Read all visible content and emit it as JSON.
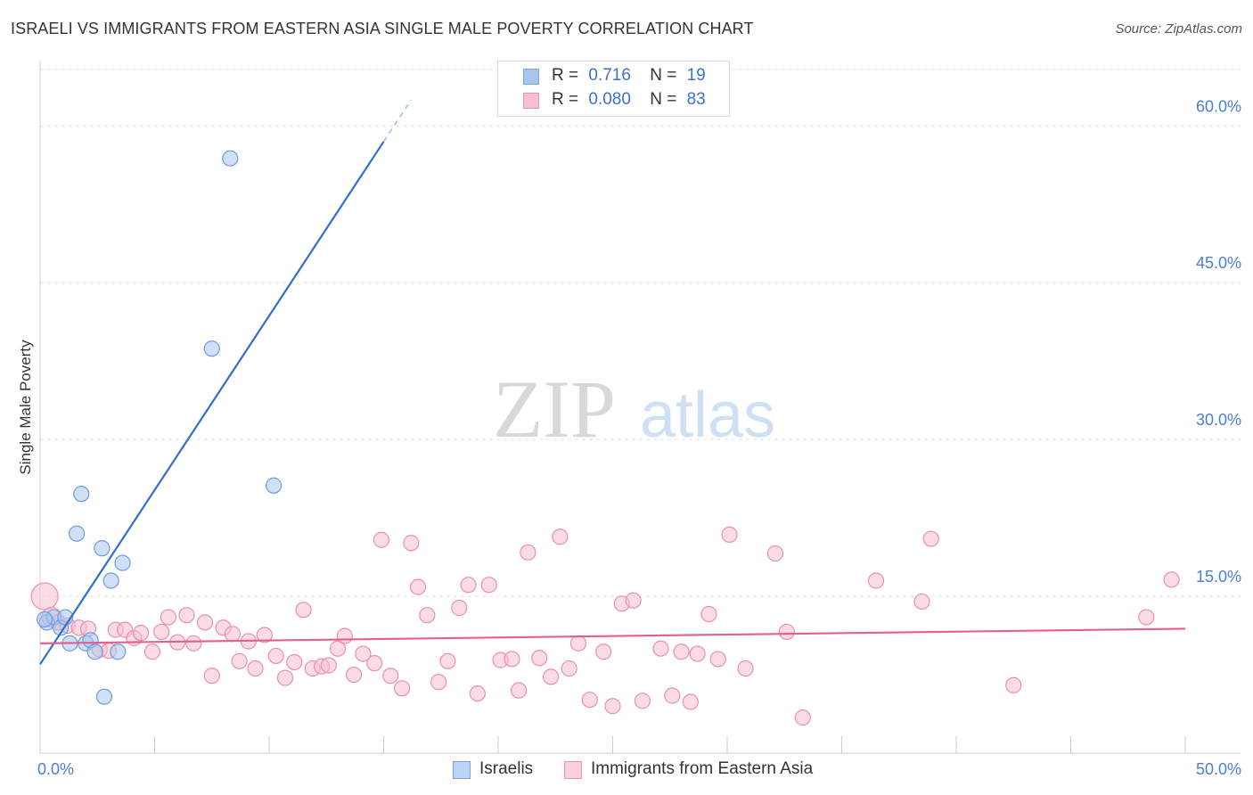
{
  "title": "ISRAELI VS IMMIGRANTS FROM EASTERN ASIA SINGLE MALE POVERTY CORRELATION CHART",
  "source": "Source: ZipAtlas.com",
  "watermark": {
    "zip": "ZIP",
    "atlas": "atlas"
  },
  "legend": {
    "rows": [
      {
        "r_label": "R =",
        "r_value": "0.716",
        "n_label": "N =",
        "n_value": "19",
        "color": "#a9c6ef",
        "border": "#7aa3de"
      },
      {
        "r_label": "R =",
        "r_value": "0.080",
        "n_label": "N =",
        "n_value": "83",
        "color": "#f8bfd0",
        "border": "#ea8fae"
      }
    ]
  },
  "bottom_legend": [
    {
      "label": "Israelis",
      "color": "#bcd4f4",
      "border": "#7aa3de"
    },
    {
      "label": "Immigrants from Eastern Asia",
      "color": "#fbd0dd",
      "border": "#ea8fae"
    }
  ],
  "chart_data": {
    "type": "scatter",
    "title": "ISRAELI VS IMMIGRANTS FROM EASTERN ASIA SINGLE MALE POVERTY CORRELATION CHART",
    "xlabel": "",
    "ylabel": "Single Male Poverty",
    "xlim": [
      0,
      50
    ],
    "ylim": [
      0,
      65
    ],
    "x_tick_labels": [
      "0.0%",
      "50.0%"
    ],
    "y_ticks": [
      15,
      30,
      45,
      60
    ],
    "y_tick_labels": [
      "15.0%",
      "30.0%",
      "45.0%",
      "60.0%"
    ],
    "grid": true,
    "series": [
      {
        "name": "Israelis",
        "color": "#a9c6ef",
        "stroke": "#6f9be0",
        "line_color": "#2f6fcc",
        "trend": {
          "x0": 0,
          "y0": 8.5,
          "x1": 15,
          "y1": 58.5,
          "dashed_to_x": 16.2,
          "dashed_to_y": 62.5
        },
        "points": [
          {
            "x": 0.3,
            "y": 12.5
          },
          {
            "x": 0.6,
            "y": 13.0
          },
          {
            "x": 0.9,
            "y": 12.0
          },
          {
            "x": 1.1,
            "y": 13.0
          },
          {
            "x": 1.3,
            "y": 10.5
          },
          {
            "x": 1.6,
            "y": 21.0
          },
          {
            "x": 1.8,
            "y": 24.8
          },
          {
            "x": 2.0,
            "y": 10.5
          },
          {
            "x": 2.2,
            "y": 10.8
          },
          {
            "x": 2.4,
            "y": 9.7
          },
          {
            "x": 2.7,
            "y": 19.6
          },
          {
            "x": 2.8,
            "y": 5.4
          },
          {
            "x": 3.1,
            "y": 16.5
          },
          {
            "x": 3.4,
            "y": 9.7
          },
          {
            "x": 3.6,
            "y": 18.2
          },
          {
            "x": 7.5,
            "y": 38.7
          },
          {
            "x": 8.3,
            "y": 56.9
          },
          {
            "x": 10.2,
            "y": 25.6
          },
          {
            "x": 0.2,
            "y": 12.8
          }
        ]
      },
      {
        "name": "Immigrants from Eastern Asia",
        "color": "#f8bfd0",
        "stroke": "#ea8fae",
        "line_color": "#e0608f",
        "trend": {
          "x0": 0,
          "y0": 10.5,
          "x1": 50,
          "y1": 11.9
        },
        "points": [
          {
            "x": 0.2,
            "y": 15.0
          },
          {
            "x": 0.5,
            "y": 13.0
          },
          {
            "x": 0.8,
            "y": 12.5
          },
          {
            "x": 1.2,
            "y": 12.2
          },
          {
            "x": 1.7,
            "y": 12.0
          },
          {
            "x": 2.1,
            "y": 11.9
          },
          {
            "x": 2.6,
            "y": 9.9
          },
          {
            "x": 3.0,
            "y": 9.8
          },
          {
            "x": 3.3,
            "y": 11.8
          },
          {
            "x": 3.7,
            "y": 11.8
          },
          {
            "x": 4.1,
            "y": 11.0
          },
          {
            "x": 4.4,
            "y": 11.5
          },
          {
            "x": 4.9,
            "y": 9.7
          },
          {
            "x": 5.3,
            "y": 11.6
          },
          {
            "x": 5.6,
            "y": 13.0
          },
          {
            "x": 6.0,
            "y": 10.6
          },
          {
            "x": 6.4,
            "y": 13.2
          },
          {
            "x": 6.7,
            "y": 10.5
          },
          {
            "x": 7.2,
            "y": 12.5
          },
          {
            "x": 7.5,
            "y": 7.4
          },
          {
            "x": 8.0,
            "y": 12.0
          },
          {
            "x": 8.4,
            "y": 11.4
          },
          {
            "x": 8.7,
            "y": 8.8
          },
          {
            "x": 9.1,
            "y": 10.7
          },
          {
            "x": 9.4,
            "y": 8.1
          },
          {
            "x": 9.8,
            "y": 11.3
          },
          {
            "x": 10.3,
            "y": 9.3
          },
          {
            "x": 10.7,
            "y": 7.2
          },
          {
            "x": 11.1,
            "y": 8.7
          },
          {
            "x": 11.5,
            "y": 13.7
          },
          {
            "x": 11.9,
            "y": 8.1
          },
          {
            "x": 12.3,
            "y": 8.3
          },
          {
            "x": 12.6,
            "y": 8.4
          },
          {
            "x": 13.0,
            "y": 10.0
          },
          {
            "x": 13.3,
            "y": 11.2
          },
          {
            "x": 13.7,
            "y": 7.5
          },
          {
            "x": 14.1,
            "y": 9.5
          },
          {
            "x": 14.6,
            "y": 8.6
          },
          {
            "x": 14.9,
            "y": 20.4
          },
          {
            "x": 15.3,
            "y": 7.4
          },
          {
            "x": 15.8,
            "y": 6.2
          },
          {
            "x": 16.2,
            "y": 20.1
          },
          {
            "x": 16.5,
            "y": 15.9
          },
          {
            "x": 16.9,
            "y": 13.2
          },
          {
            "x": 17.4,
            "y": 6.8
          },
          {
            "x": 17.8,
            "y": 8.8
          },
          {
            "x": 18.3,
            "y": 13.9
          },
          {
            "x": 18.7,
            "y": 16.1
          },
          {
            "x": 19.1,
            "y": 5.7
          },
          {
            "x": 19.6,
            "y": 16.1
          },
          {
            "x": 20.1,
            "y": 8.9
          },
          {
            "x": 20.6,
            "y": 9.0
          },
          {
            "x": 20.9,
            "y": 6.0
          },
          {
            "x": 21.3,
            "y": 19.2
          },
          {
            "x": 21.8,
            "y": 9.1
          },
          {
            "x": 22.3,
            "y": 7.3
          },
          {
            "x": 22.7,
            "y": 20.7
          },
          {
            "x": 23.1,
            "y": 8.1
          },
          {
            "x": 23.5,
            "y": 10.5
          },
          {
            "x": 24.0,
            "y": 5.1
          },
          {
            "x": 24.6,
            "y": 9.7
          },
          {
            "x": 25.0,
            "y": 4.5
          },
          {
            "x": 25.4,
            "y": 14.3
          },
          {
            "x": 25.9,
            "y": 14.6
          },
          {
            "x": 26.3,
            "y": 5.0
          },
          {
            "x": 27.1,
            "y": 10.0
          },
          {
            "x": 27.6,
            "y": 5.5
          },
          {
            "x": 28.0,
            "y": 9.7
          },
          {
            "x": 28.4,
            "y": 4.9
          },
          {
            "x": 28.7,
            "y": 9.5
          },
          {
            "x": 29.2,
            "y": 13.3
          },
          {
            "x": 29.6,
            "y": 9.0
          },
          {
            "x": 30.1,
            "y": 20.9
          },
          {
            "x": 30.8,
            "y": 8.1
          },
          {
            "x": 32.1,
            "y": 19.1
          },
          {
            "x": 32.6,
            "y": 11.6
          },
          {
            "x": 33.3,
            "y": 3.4
          },
          {
            "x": 36.5,
            "y": 16.5
          },
          {
            "x": 38.5,
            "y": 14.5
          },
          {
            "x": 38.9,
            "y": 20.5
          },
          {
            "x": 42.5,
            "y": 6.5
          },
          {
            "x": 48.3,
            "y": 13.0
          },
          {
            "x": 49.4,
            "y": 16.6
          }
        ]
      }
    ]
  }
}
